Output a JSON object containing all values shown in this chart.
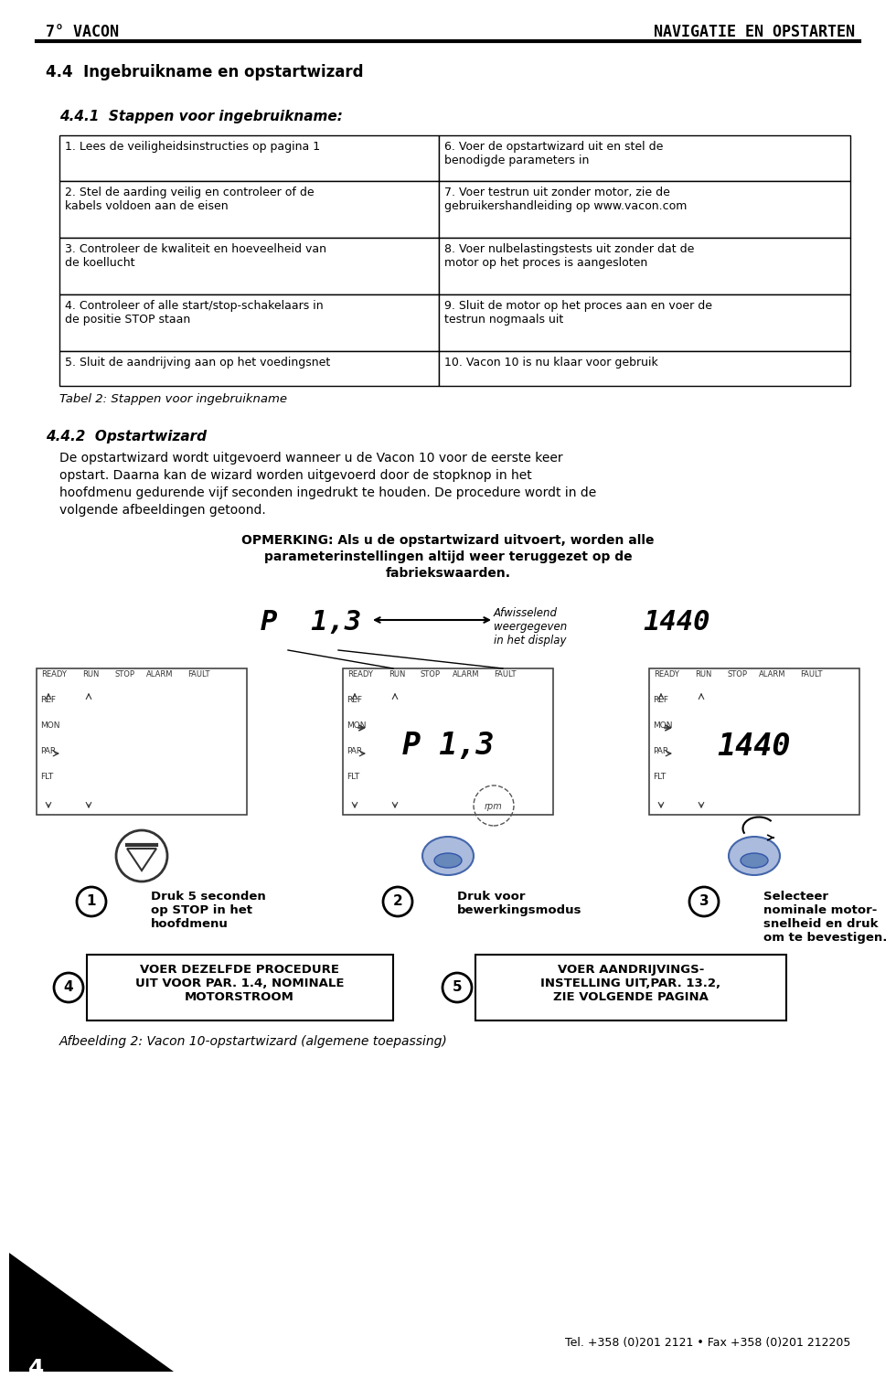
{
  "page_bg": "#ffffff",
  "header_left": "7° VACON",
  "header_right": "NAVIGATIE EN OPSTARTEN",
  "section_title": "4.4  Ingebruikname en opstartwizard",
  "subsection_title": "4.4.1  Stappen voor ingebruikname:",
  "table_rows": [
    [
      "1. Lees de veiligheidsinstructies op pagina 1",
      "6. Voer de opstartwizard uit en stel de\nbenodigde parameters in"
    ],
    [
      "2. Stel de aarding veilig en controleer of de\nkabels voldoen aan de eisen",
      "7. Voer testrun uit zonder motor, zie de\ngebruikershandleiding op www.vacon.com"
    ],
    [
      "3. Controleer de kwaliteit en hoeveelheid van\nde koellucht",
      "8. Voer nulbelastingstests uit zonder dat de\nmotor op het proces is aangesloten"
    ],
    [
      "4. Controleer of alle start/stop-schakelaars in\nde positie STOP staan",
      "9. Sluit de motor op het proces aan en voer de\ntestrun nogmaals uit"
    ],
    [
      "5. Sluit de aandrijving aan op het voedingsnet",
      "10. Vacon 10 is nu klaar voor gebruik"
    ]
  ],
  "table_caption": "Tabel 2: Stappen voor ingebruikname",
  "subsection2_title": "4.4.2  Opstartwizard",
  "paragraph1": "De opstartwizard wordt uitgevoerd wanneer u de Vacon 10 voor de eerste keer\nopstart. Daarna kan de wizard worden uitgevoerd door de stopknop in het\nhoofdmenu gedurende vijf seconden ingedrukt te houden. De procedure wordt in de\nvolgende afbeeldingen getoond.",
  "opmerking_line1": "OPMERKING: Als u de opstartwizard uitvoert, worden alle",
  "opmerking_line2": "parameterinstellingen altijd weer teruggezet op de",
  "opmerking_line3": "fabriekswaarden.",
  "display_label": "Afwisselend\nweergegeven\nin het display",
  "caption2": "Afbeelding 2: Vacon 10-opstartwizard (algemene toepassing)",
  "step1_text": "Druk 5 seconden\nop STOP in het\nhoofdmenu",
  "step2_text": "Druk voor\nbewerkingsmodus",
  "step3_text": "Selecteer\nnominale motor-\nsnelheid en druk\nom te bevestigen.",
  "step4_text": "VOER DEZELFDE PROCEDURE\nUIT VOOR PAR. 1.4, NOMINALE\nMOTORSTROOM",
  "step5_text": "VOER AANDRIJVINGS-\nINSTELLING UIT,PAR. 13.2,\nZIE VOLGENDE PAGINA",
  "footer_right": "Tel. +358 (0)201 2121 • Fax +358 (0)201 212205",
  "footer_num": "4"
}
